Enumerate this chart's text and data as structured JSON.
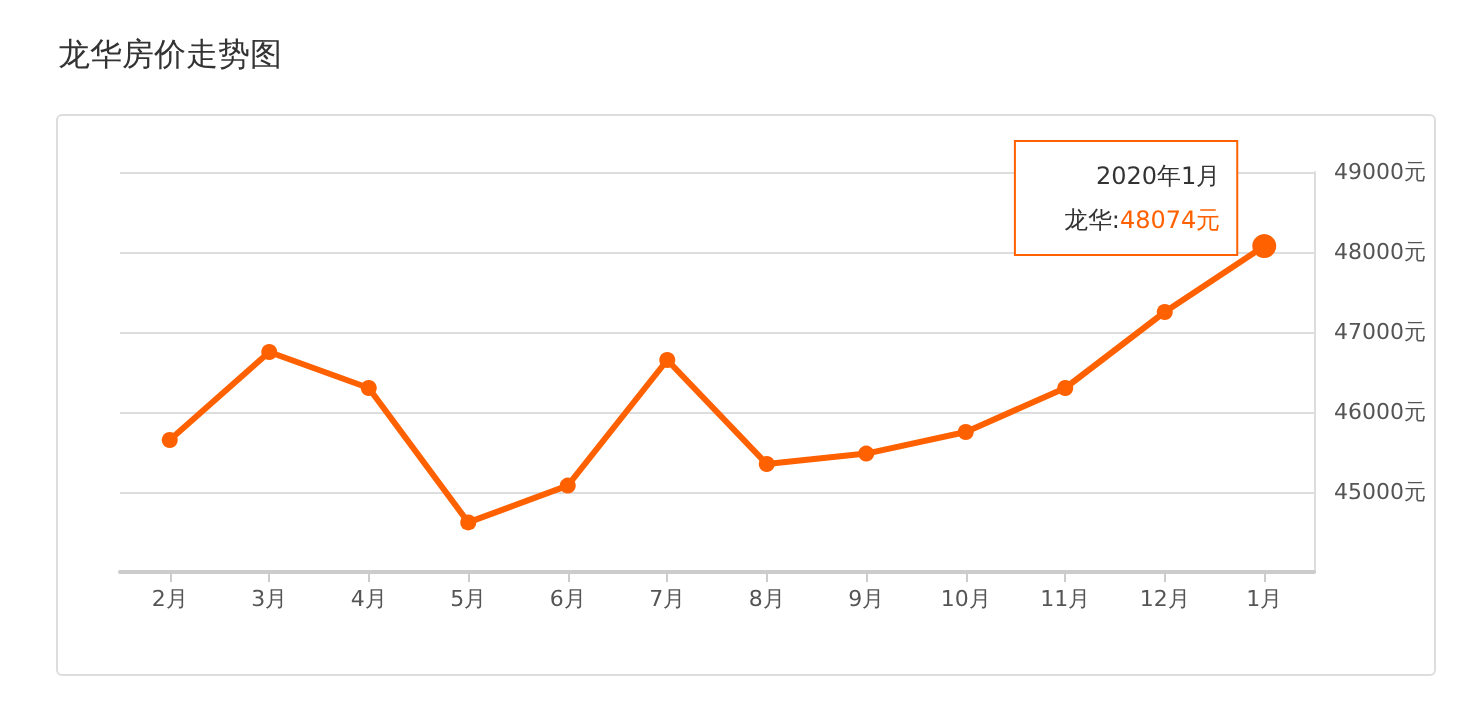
{
  "chart_data": {
    "type": "line",
    "title": "龙华房价走势图",
    "categories": [
      "2月",
      "3月",
      "4月",
      "5月",
      "6月",
      "7月",
      "8月",
      "9月",
      "10月",
      "11月",
      "12月",
      "1月"
    ],
    "series": [
      {
        "name": "龙华:",
        "color": "#ff6100",
        "values": [
          45650,
          46750,
          46300,
          44620,
          45080,
          46650,
          45350,
          45480,
          45750,
          46300,
          47250,
          48074
        ],
        "value_labels": [
          null,
          null,
          null,
          null,
          null,
          null,
          null,
          null,
          null,
          null,
          null,
          "48074元"
        ]
      }
    ],
    "annotations": [
      "2020年1月"
    ],
    "ylim": [
      44000,
      49000
    ],
    "yticks": [
      {
        "value": 44000,
        "label": null
      },
      {
        "value": 45000,
        "label": "45000元"
      },
      {
        "value": 46000,
        "label": "46000元"
      },
      {
        "value": 47000,
        "label": "47000元"
      },
      {
        "value": 48000,
        "label": "48000元"
      },
      {
        "value": 49000,
        "label": "49000元"
      }
    ],
    "grid": "y",
    "marker": "circle",
    "line_style": "solid"
  }
}
